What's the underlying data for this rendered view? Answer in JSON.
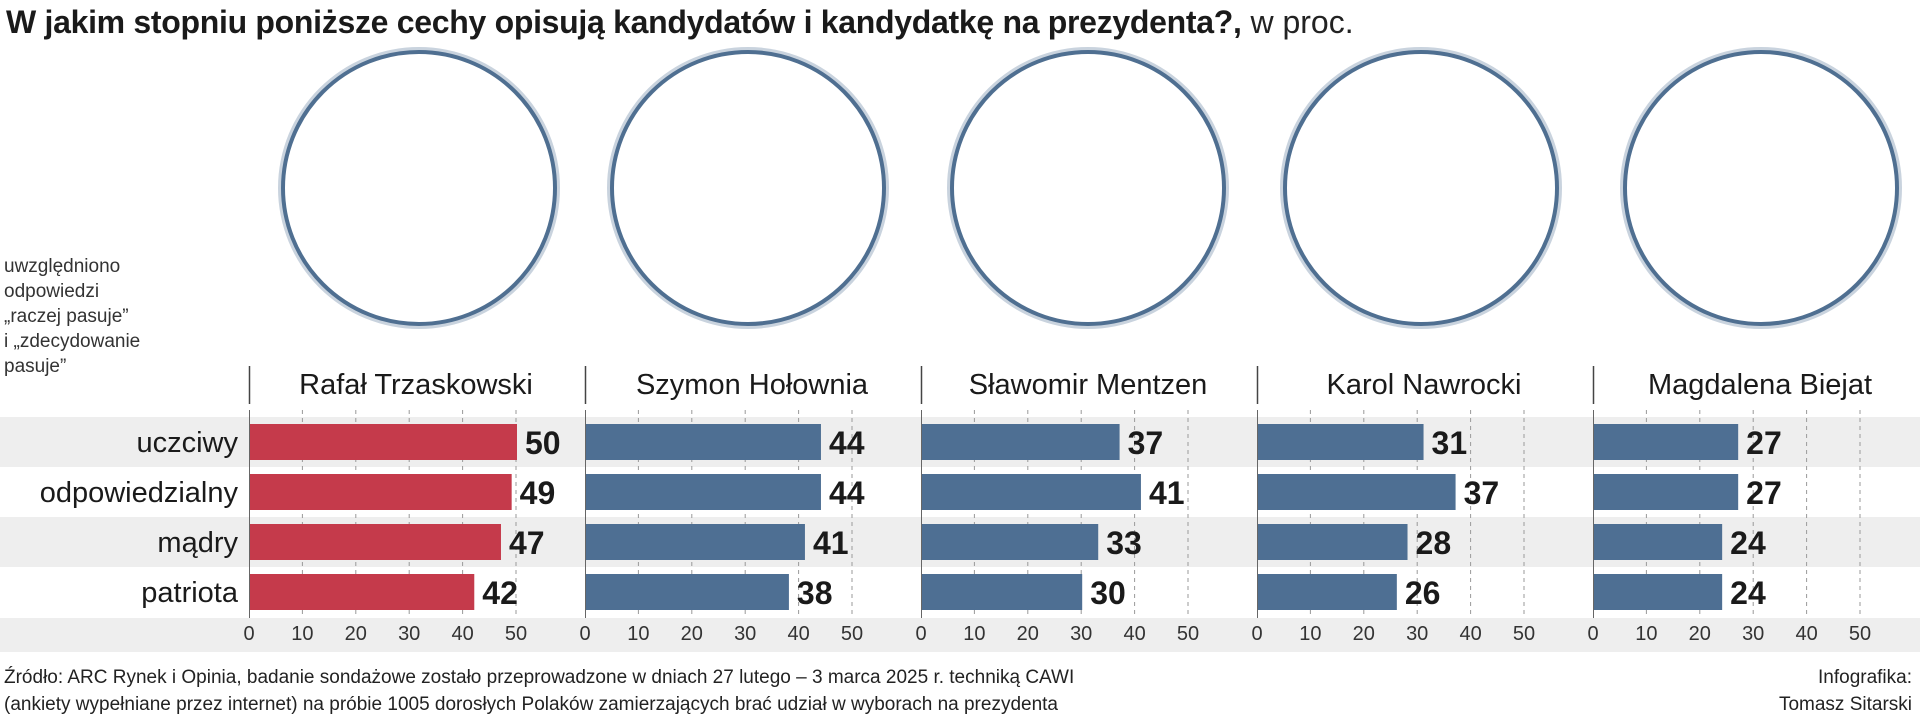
{
  "title": {
    "main": "W jakim stopniu poniższe cechy opisują kandydatów i kandydatkę na prezydenta?,",
    "unit": " w proc."
  },
  "note": [
    "uwzględniono",
    "odpowiedzi",
    "„raczej pasuje”",
    "i „zdecydowanie",
    "pasuje”"
  ],
  "colors": {
    "highlight": "#c53a4b",
    "bar": "#4e6f93",
    "band": "#eeeeee",
    "portrait_ring": "#4f6f91"
  },
  "candidate_icons": [
    "portrait-photo",
    "portrait-photo",
    "portrait-photo",
    "portrait-photo",
    "portrait-photo"
  ],
  "chart_data": {
    "type": "bar",
    "orientation": "horizontal",
    "categories": [
      "uczciwy",
      "odpowiedzialny",
      "mądry",
      "patriota"
    ],
    "series": [
      {
        "name": "Rafał Trzaskowski",
        "values": [
          50,
          49,
          47,
          42
        ],
        "highlight": true
      },
      {
        "name": "Szymon Hołownia",
        "values": [
          44,
          44,
          41,
          38
        ]
      },
      {
        "name": "Sławomir Mentzen",
        "values": [
          37,
          41,
          33,
          30
        ]
      },
      {
        "name": "Karol Nawrocki",
        "values": [
          31,
          37,
          28,
          26
        ]
      },
      {
        "name": "Magdalena Biejat",
        "values": [
          27,
          27,
          24,
          24
        ]
      }
    ],
    "xlim": [
      0,
      50
    ],
    "ticks": [
      0,
      10,
      20,
      30,
      40,
      50
    ],
    "tick_labels": [
      "0",
      "10",
      "20",
      "30",
      "40",
      "50"
    ],
    "grid": "dashed vertical at 10-point steps",
    "data_labels": true
  },
  "source": [
    "Źródło: ARC Rynek i Opinia, badanie sondażowe zostało przeprowadzone w dniach 27 lutego – 3 marca 2025 r. techniką CAWI",
    "(ankiety wypełniane przez internet) na próbie 1005 dorosłych Polaków zamierzających brać udział w wyborach na prezydenta"
  ],
  "credit": [
    "Infografika:",
    "Tomasz Sitarski"
  ]
}
